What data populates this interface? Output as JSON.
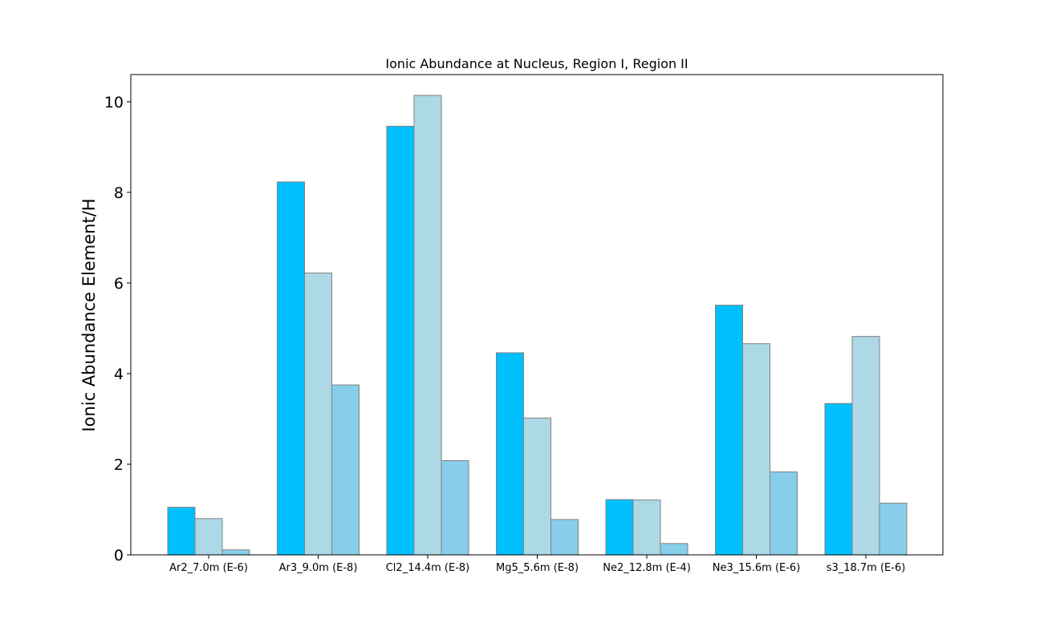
{
  "chart_data": {
    "type": "bar",
    "title": "Ionic Abundance at Nucleus, Region I, Region II",
    "xlabel": "",
    "ylabel": "Ionic Abundance Element/H",
    "ylim": [
      0,
      10.6
    ],
    "yticks": [
      0,
      2,
      4,
      6,
      8,
      10
    ],
    "grid": false,
    "legend": "none",
    "categories": [
      "Ar2_7.0m (E-6)",
      "Ar3_9.0m (E-8)",
      "Cl2_14.4m (E-8)",
      "Mg5_5.6m (E-8)",
      "Ne2_12.8m (E-4)",
      "Ne3_15.6m (E-6)",
      "s3_18.7m (E-6)"
    ],
    "series": [
      {
        "color": "#00bfff",
        "values": [
          1.05,
          8.23,
          9.46,
          4.46,
          1.22,
          5.51,
          3.34
        ]
      },
      {
        "color": "#add8e6",
        "values": [
          0.8,
          6.22,
          10.14,
          3.02,
          1.21,
          4.66,
          4.82
        ]
      },
      {
        "color": "#87ceeb",
        "values": [
          0.11,
          3.75,
          2.08,
          0.78,
          0.25,
          1.83,
          1.14
        ]
      }
    ],
    "bar_edge_color": "#808080"
  }
}
